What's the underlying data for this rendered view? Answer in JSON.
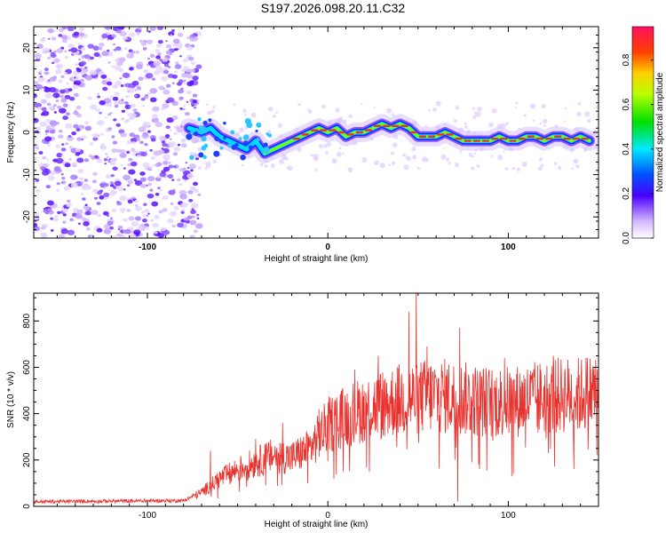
{
  "title": "S197.2026.098.20.11.C32",
  "colors": {
    "snr_line": "#e8322e",
    "axis": "#000000",
    "track_hot": "#e8322e"
  },
  "chart_data": [
    {
      "type": "heatmap",
      "name": "spectrogram",
      "xlabel": "Height of straight line (km)",
      "ylabel": "Frequency (Hz)",
      "xlim": [
        -163,
        150
      ],
      "ylim": [
        -25,
        25
      ],
      "x_ticks": [
        -100,
        0,
        100
      ],
      "x_tick_labels": [
        "-100",
        "0",
        "100"
      ],
      "y_ticks": [
        20,
        10,
        0,
        -10,
        -20
      ],
      "y_tick_labels": [
        "20",
        "10",
        "0",
        "-10",
        "-20"
      ],
      "noise_region_x": [
        -163,
        -77
      ],
      "ridge": {
        "x": [
          -77,
          -70,
          -65,
          -60,
          -55,
          -50,
          -45,
          -40,
          -35,
          -30,
          -25,
          -20,
          -15,
          -10,
          -5,
          0,
          5,
          10,
          15,
          20,
          25,
          30,
          35,
          40,
          45,
          50,
          55,
          60,
          65,
          70,
          75,
          80,
          85,
          90,
          95,
          100,
          105,
          110,
          115,
          120,
          125,
          130,
          135,
          140,
          145
        ],
        "freq": [
          1,
          0,
          1,
          -1,
          -2,
          -3,
          -4,
          -2,
          -5,
          -4,
          -3,
          -2,
          -1,
          0,
          1,
          0,
          1,
          -1,
          0,
          0,
          1,
          2,
          1,
          2,
          1,
          -1,
          -1,
          -1,
          0,
          -1,
          -2,
          -2,
          -2,
          -2,
          -1,
          -2,
          -2,
          -1,
          -1,
          -2,
          -1,
          -1,
          -2,
          -1,
          -2
        ]
      },
      "colorbar": {
        "label": "Normalized spectral amplitude",
        "ticks": [
          0.0,
          0.2,
          0.4,
          0.6,
          0.8
        ],
        "tick_labels": [
          "0.0",
          "0.2",
          "0.4",
          "0.6",
          "0.8"
        ],
        "range": [
          0,
          0.95
        ]
      }
    },
    {
      "type": "line",
      "name": "snr",
      "xlabel": "Height of straight line (km)",
      "ylabel": "SNR (10 * v/v)",
      "xlim": [
        -163,
        150
      ],
      "ylim": [
        0,
        920
      ],
      "x_ticks": [
        -100,
        0,
        100
      ],
      "x_tick_labels": [
        "-100",
        "0",
        "100"
      ],
      "y_ticks": [
        0,
        200,
        400,
        600,
        800
      ],
      "y_tick_labels": [
        "0",
        "200",
        "400",
        "600",
        "800"
      ],
      "envelope": {
        "x": [
          -163,
          -80,
          -70,
          -60,
          -50,
          -40,
          -30,
          -20,
          -10,
          0,
          10,
          20,
          30,
          40,
          50,
          60,
          70,
          80,
          90,
          100,
          110,
          120,
          130,
          140,
          150
        ],
        "y": [
          20,
          25,
          60,
          120,
          160,
          190,
          220,
          210,
          250,
          350,
          390,
          420,
          440,
          460,
          470,
          480,
          470,
          460,
          450,
          450,
          460,
          470,
          480,
          480,
          500
        ]
      },
      "spikes": [
        {
          "x": -65,
          "y": 240
        },
        {
          "x": -40,
          "y": 290
        },
        {
          "x": -25,
          "y": 360
        },
        {
          "x": -5,
          "y": 420
        },
        {
          "x": 5,
          "y": 470
        },
        {
          "x": 15,
          "y": 590
        },
        {
          "x": 28,
          "y": 650
        },
        {
          "x": 45,
          "y": 840
        },
        {
          "x": 49,
          "y": 920
        },
        {
          "x": 55,
          "y": 690
        },
        {
          "x": 73,
          "y": 770
        },
        {
          "x": 72,
          "y": 20
        },
        {
          "x": 98,
          "y": 640
        },
        {
          "x": 102,
          "y": 130
        },
        {
          "x": 125,
          "y": 650
        },
        {
          "x": 143,
          "y": 640
        }
      ]
    }
  ]
}
